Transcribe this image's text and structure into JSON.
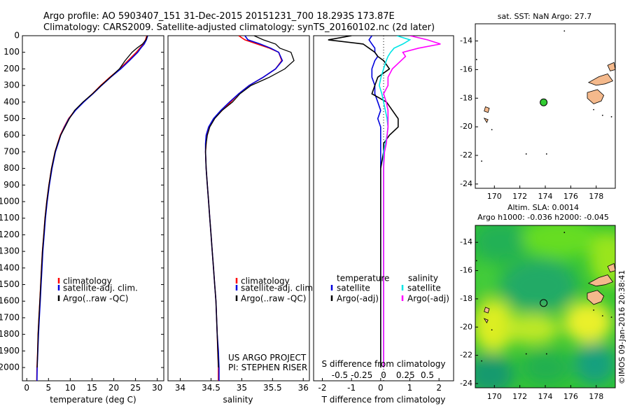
{
  "header": {
    "line1": "Argo profile: AO 5903407_151 31-Dec-2015 20151231_700 18.293S 173.87E",
    "line2": "Climatology: CARS2009. Satellite-adjusted climatology: synTS_20160102.nc (2d later)"
  },
  "colors": {
    "climatology": "#ff0000",
    "satellite": "#0000dd",
    "argo": "#000000",
    "salinity_satellite": "#00e5e5",
    "salinity_argo": "#ff00ff",
    "land": "#f4b98c",
    "float_marker": "#33cc33"
  },
  "credits": {
    "line1": "US ARGO PROJECT",
    "line2": "PI: STEPHEN RISER"
  },
  "sst_map": {
    "title": "sat. SST: NaN Argo: 27.7"
  },
  "sla_map": {
    "title1": "Altim. SLA: 0.0014",
    "title2": "Argo h1000: -0.036 h2000: -0.045"
  },
  "timestamp": "©IMOS 09-Jan-2016 20:38:41",
  "depth_axis": {
    "ylim": [
      0,
      2080
    ],
    "ticks": [
      "0",
      "100",
      "200",
      "300",
      "400",
      "500",
      "600",
      "700",
      "800",
      "900",
      "1000",
      "1100",
      "1200",
      "1300",
      "1400",
      "1500",
      "1600",
      "1700",
      "1800",
      "1900",
      "2000"
    ]
  },
  "chart_data": [
    {
      "type": "line",
      "xlabel": "temperature (deg C)",
      "xlim": [
        -1,
        31.5
      ],
      "xticks": [
        "0",
        "5",
        "10",
        "15",
        "20",
        "25",
        "30"
      ],
      "legend": [
        "climatology",
        "satellite-adj. clim.",
        "Argo(..raw -QC)"
      ],
      "depth": [
        0,
        25,
        50,
        75,
        100,
        150,
        200,
        250,
        300,
        350,
        400,
        450,
        500,
        550,
        600,
        650,
        700,
        800,
        900,
        1000,
        1100,
        1200,
        1300,
        1400,
        1500,
        1600,
        1700,
        1800,
        1900,
        2000,
        2080
      ],
      "series": [
        {
          "name": "climatology",
          "values": [
            27.6,
            27.3,
            26.8,
            26.0,
            25.2,
            23.3,
            21.4,
            19.1,
            17.0,
            15.1,
            13.0,
            11.1,
            9.6,
            8.6,
            7.7,
            7.1,
            6.5,
            5.7,
            5.1,
            4.6,
            4.2,
            3.9,
            3.6,
            3.4,
            3.2,
            3.0,
            2.8,
            2.6,
            2.5,
            2.35,
            2.3
          ]
        },
        {
          "name": "satellite-adj. clim.",
          "values": [
            27.8,
            27.5,
            27.0,
            26.2,
            25.5,
            23.6,
            21.6,
            19.3,
            17.2,
            15.2,
            13.1,
            11.2,
            9.7,
            8.7,
            7.8,
            7.2,
            6.6,
            5.8,
            5.2,
            4.7,
            4.3,
            4.0,
            3.7,
            3.5,
            3.3,
            3.1,
            2.9,
            2.7,
            2.55,
            2.4,
            2.35
          ]
        },
        {
          "name": "Argo(..raw -QC)",
          "values": [
            27.7,
            27.4,
            26.6,
            25.3,
            24.2,
            22.6,
            21.3,
            19.2,
            17.1,
            15.1,
            12.9,
            11.0,
            9.8,
            8.8,
            7.8,
            7.1,
            6.5,
            5.7,
            5.1,
            4.6,
            4.2,
            3.9,
            3.6,
            3.4,
            3.2,
            3.0,
            2.8,
            2.6,
            2.5,
            2.4,
            null
          ]
        }
      ]
    },
    {
      "type": "line",
      "xlabel": "salinity",
      "xlim": [
        33.8,
        36.1
      ],
      "xticks": [
        "34",
        "34.5",
        "35",
        "35.5",
        "36"
      ],
      "legend": [
        "climatology",
        "satellite-adj. clim.",
        "Argo(..raw -QC)"
      ],
      "depth": [
        0,
        25,
        50,
        75,
        100,
        150,
        200,
        250,
        300,
        350,
        400,
        450,
        500,
        550,
        600,
        650,
        700,
        800,
        900,
        1000,
        1100,
        1200,
        1300,
        1400,
        1500,
        1600,
        1700,
        1800,
        1900,
        2000,
        2080
      ],
      "series": [
        {
          "name": "climatology",
          "values": [
            34.95,
            35.05,
            35.25,
            35.45,
            35.6,
            35.65,
            35.55,
            35.35,
            35.12,
            34.95,
            34.82,
            34.68,
            34.55,
            34.47,
            34.43,
            34.42,
            34.41,
            34.42,
            34.44,
            34.46,
            34.48,
            34.5,
            34.52,
            34.54,
            34.56,
            34.58,
            34.59,
            34.6,
            34.61,
            34.62,
            34.62
          ]
        },
        {
          "name": "satellite-adj. clim.",
          "values": [
            35.05,
            35.1,
            35.3,
            35.47,
            35.6,
            35.66,
            35.55,
            35.35,
            35.12,
            34.95,
            34.8,
            34.66,
            34.54,
            34.46,
            34.42,
            34.41,
            34.41,
            34.42,
            34.44,
            34.46,
            34.48,
            34.5,
            34.52,
            34.54,
            34.56,
            34.58,
            34.59,
            34.6,
            34.62,
            34.63,
            34.63
          ]
        },
        {
          "name": "Argo(..raw -QC)",
          "values": [
            35.2,
            35.35,
            35.55,
            35.62,
            35.8,
            35.85,
            35.7,
            35.45,
            35.15,
            34.97,
            34.85,
            34.68,
            34.56,
            34.48,
            34.44,
            34.42,
            34.41,
            34.42,
            34.44,
            34.46,
            34.48,
            34.5,
            34.52,
            34.54,
            34.56,
            34.58,
            34.59,
            34.6,
            34.61,
            34.62,
            null
          ]
        }
      ]
    },
    {
      "type": "line",
      "title_top": "S difference from climatology",
      "xlabel": "T difference from climatology",
      "top_xlim": [
        -0.8,
        0.8
      ],
      "top_xticks": [
        "-0.5",
        "-0.25",
        "0",
        "0.25",
        "0.5"
      ],
      "xlim": [
        -2.3,
        2.5
      ],
      "xticks": [
        "-2",
        "-1",
        "0",
        "1",
        "2"
      ],
      "legend_headers": [
        "temperature",
        "salinity"
      ],
      "legend": [
        "satellite",
        "Argo(-adj)",
        "satellite",
        "Argo(-adj)"
      ],
      "depth": [
        0,
        25,
        50,
        75,
        100,
        125,
        150,
        200,
        250,
        300,
        350,
        400,
        450,
        500,
        550,
        600,
        650,
        700,
        800,
        900,
        1000,
        1200,
        1400,
        1600,
        1800,
        2000
      ],
      "series": [
        {
          "name": "temperature satellite",
          "values": [
            -0.3,
            -0.4,
            -0.3,
            -0.2,
            -0.2,
            -0.1,
            -0.2,
            -0.3,
            -0.3,
            -0.2,
            -0.2,
            -0.1,
            0.0,
            -0.1,
            0.0,
            0.0,
            0.0,
            0.0,
            0.0,
            0.0,
            0.0,
            0.0,
            0.0,
            0.0,
            0.0,
            0.0
          ]
        },
        {
          "name": "temperature Argo(-adj)",
          "values": [
            -1.0,
            -1.8,
            -0.6,
            -0.4,
            -0.2,
            -0.1,
            0.1,
            0.3,
            -0.1,
            -0.2,
            -0.3,
            0.2,
            0.4,
            0.6,
            0.6,
            0.3,
            0.1,
            0.1,
            0.0,
            0.0,
            0.0,
            0.0,
            0.0,
            0.0,
            0.0,
            0.0
          ]
        },
        {
          "name": "salinity satellite",
          "values": [
            0.15,
            0.3,
            0.22,
            0.12,
            0.08,
            0.05,
            0.03,
            0.0,
            -0.03,
            -0.05,
            -0.02,
            0.0,
            0.02,
            0.04,
            0.05,
            0.04,
            0.02,
            0.0,
            0.0,
            0.0,
            0.0,
            0.0,
            0.0,
            0.0,
            0.0,
            0.0
          ]
        },
        {
          "name": "salinity Argo(-adj)",
          "values": [
            0.3,
            0.5,
            0.65,
            0.4,
            0.22,
            0.25,
            0.2,
            0.1,
            0.05,
            0.05,
            0.0,
            0.03,
            0.05,
            0.05,
            0.05,
            0.04,
            0.03,
            0.01,
            0.0,
            0.0,
            0.0,
            0.0,
            0.0,
            0.0,
            0.0,
            0.0
          ]
        }
      ]
    },
    {
      "type": "scatter",
      "title": "sat. SST: NaN Argo: 27.7",
      "xlim": [
        168.5,
        179.5
      ],
      "ylim": [
        -24.3,
        -12.8
      ],
      "xticks": [
        "170",
        "172",
        "174",
        "176",
        "178"
      ],
      "yticks": [
        "-14",
        "-16",
        "-18",
        "-20",
        "-22",
        "-24"
      ],
      "points": [
        {
          "x": 173.87,
          "y": -18.293
        }
      ]
    },
    {
      "type": "heatmap",
      "title": "Altim. SLA: 0.0014",
      "subtitle": "Argo h1000: -0.036 h2000: -0.045",
      "xlim": [
        168.5,
        179.5
      ],
      "ylim": [
        -24.3,
        -12.8
      ],
      "xticks": [
        "170",
        "172",
        "174",
        "176",
        "178"
      ],
      "yticks": [
        "-14",
        "-16",
        "-18",
        "-20",
        "-22",
        "-24"
      ],
      "points": [
        {
          "x": 173.87,
          "y": -18.293
        }
      ]
    }
  ]
}
